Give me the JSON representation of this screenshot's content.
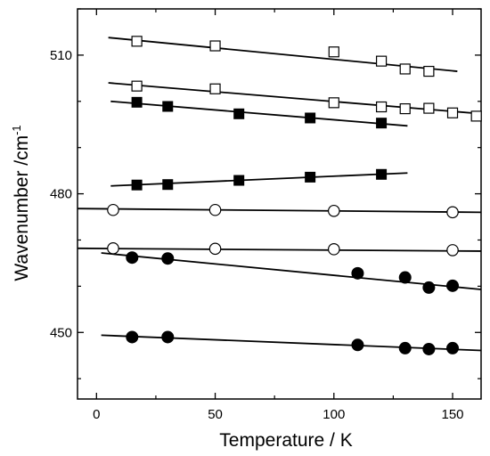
{
  "chart_data": {
    "type": "scatter",
    "xlabel": "Temperature / K",
    "ylabel": "Wavenumber /cm",
    "ylabel_sup": "-1",
    "xlim": [
      -8,
      162
    ],
    "ylim": [
      435.6,
      520
    ],
    "xticks": [
      0,
      50,
      100,
      150
    ],
    "yticks": [
      450,
      480,
      510
    ],
    "grid": false,
    "series": [
      {
        "marker": "open-square",
        "points": [
          [
            17,
            513
          ],
          [
            50,
            512
          ],
          [
            100,
            510.7
          ],
          [
            120,
            508.7
          ],
          [
            130,
            507
          ],
          [
            140,
            506.5
          ]
        ],
        "fit": [
          [
            5,
            513.8
          ],
          [
            152,
            506.5
          ]
        ]
      },
      {
        "marker": "open-square",
        "points": [
          [
            17,
            503.3
          ],
          [
            50,
            502.7
          ],
          [
            100,
            499.7
          ],
          [
            120,
            498.8
          ],
          [
            130,
            498.4
          ],
          [
            140,
            498.5
          ],
          [
            150,
            497.5
          ],
          [
            160,
            496.8
          ]
        ],
        "fit": [
          [
            5,
            504
          ],
          [
            160,
            497.4
          ]
        ]
      },
      {
        "marker": "filled-square",
        "points": [
          [
            17,
            499.8
          ],
          [
            30,
            498.9
          ],
          [
            60,
            497.3
          ],
          [
            90,
            496.4
          ],
          [
            120,
            495.3
          ]
        ],
        "fit": [
          [
            6,
            500
          ],
          [
            131,
            494.7
          ]
        ]
      },
      {
        "marker": "filled-square",
        "points": [
          [
            17,
            481.9
          ],
          [
            30,
            482
          ],
          [
            60,
            482.9
          ],
          [
            90,
            483.6
          ],
          [
            120,
            484.2
          ]
        ],
        "fit": [
          [
            6,
            481.7
          ],
          [
            131,
            484.5
          ]
        ]
      },
      {
        "marker": "open-circle",
        "points": [
          [
            7,
            476.5
          ],
          [
            50,
            476.5
          ],
          [
            100,
            476.3
          ],
          [
            150,
            476
          ]
        ],
        "fit": [
          [
            -8,
            476.8
          ],
          [
            162,
            476
          ]
        ]
      },
      {
        "marker": "open-circle",
        "points": [
          [
            7,
            468.2
          ],
          [
            50,
            468.1
          ],
          [
            100,
            468
          ],
          [
            150,
            467.8
          ]
        ],
        "fit": [
          [
            -8,
            468.2
          ],
          [
            162,
            467.6
          ]
        ]
      },
      {
        "marker": "filled-circle",
        "points": [
          [
            15,
            466.2
          ],
          [
            30,
            466
          ],
          [
            110,
            462.8
          ],
          [
            130,
            461.9
          ],
          [
            140,
            459.7
          ],
          [
            150,
            460.1
          ]
        ],
        "fit": [
          [
            2,
            467.2
          ],
          [
            162,
            459.3
          ]
        ]
      },
      {
        "marker": "filled-circle",
        "points": [
          [
            15,
            449
          ],
          [
            30,
            449
          ],
          [
            110,
            447.3
          ],
          [
            130,
            446.6
          ],
          [
            140,
            446.4
          ],
          [
            150,
            446.6
          ]
        ],
        "fit": [
          [
            2,
            449.4
          ],
          [
            162,
            446.1
          ]
        ]
      }
    ]
  }
}
